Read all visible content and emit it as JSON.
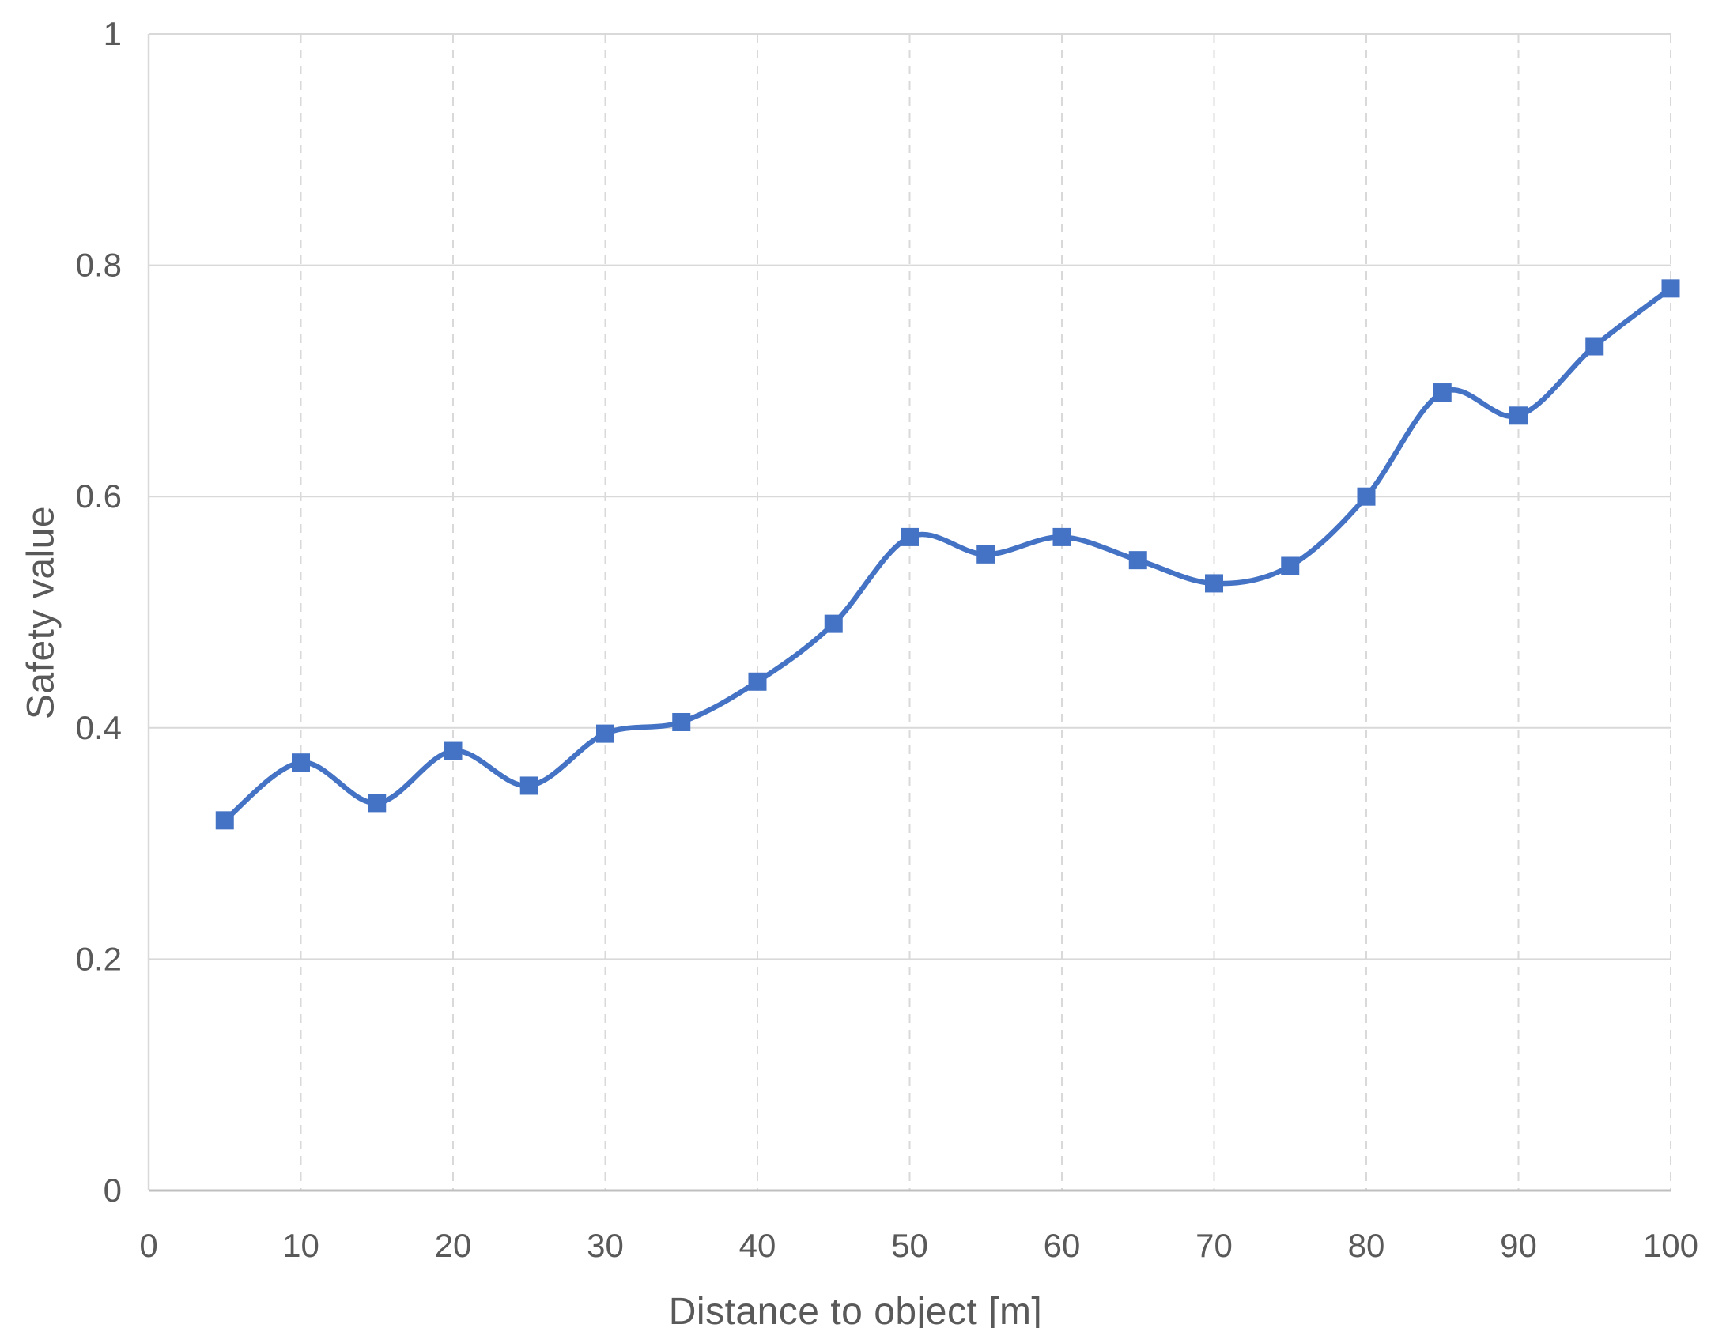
{
  "chart_data": {
    "type": "line",
    "title": "",
    "xlabel": "Distance to object [m]",
    "ylabel": "Safety value",
    "series": [
      {
        "name": "Safety value",
        "x": [
          5,
          10,
          15,
          20,
          25,
          30,
          35,
          40,
          45,
          50,
          55,
          60,
          65,
          70,
          75,
          80,
          85,
          90,
          95,
          100
        ],
        "values": [
          0.32,
          0.37,
          0.335,
          0.38,
          0.35,
          0.395,
          0.405,
          0.44,
          0.49,
          0.565,
          0.55,
          0.565,
          0.545,
          0.525,
          0.54,
          0.6,
          0.69,
          0.67,
          0.73,
          0.78
        ]
      }
    ],
    "xlim": [
      0,
      100
    ],
    "ylim": [
      0,
      1
    ],
    "x_ticks": [
      0,
      10,
      20,
      30,
      40,
      50,
      60,
      70,
      80,
      90,
      100
    ],
    "x_tick_labels": [
      "0",
      "10",
      "20",
      "30",
      "40",
      "50",
      "60",
      "70",
      "80",
      "90",
      "100"
    ],
    "y_ticks": [
      0,
      0.2,
      0.4,
      0.6,
      0.8,
      1
    ],
    "y_tick_labels": [
      "0",
      "0.2",
      "0.4",
      "0.6",
      "0.8",
      "1"
    ],
    "grid": {
      "horizontal_style": "solid",
      "vertical_style": "dashed",
      "top_border": true,
      "left_border": true,
      "right_border": false
    },
    "legend_position": "none",
    "line_smoothed": true,
    "marker_shape": "square",
    "colors": {
      "series_line": "#4472C4",
      "marker_fill": "#4472C4",
      "gridline": "#D9D9D9",
      "axis_line": "#BFBFBF",
      "tick_label_text": "#595959",
      "axis_title_text": "#595959",
      "background": "#FFFFFF"
    }
  }
}
